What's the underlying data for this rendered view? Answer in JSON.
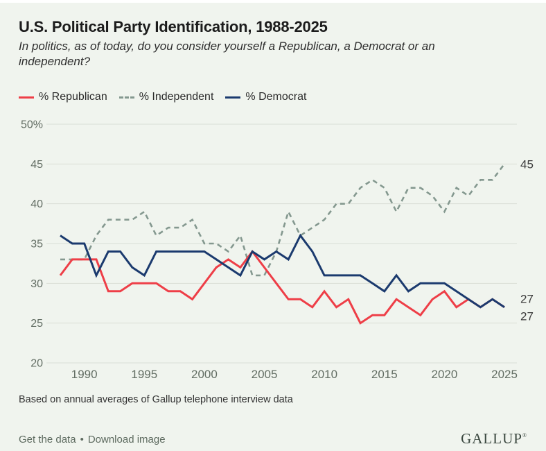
{
  "header": {
    "title": "U.S. Political Party Identification, 1988-2025",
    "subtitle": "In politics, as of today, do you consider yourself a Republican, a Democrat or an independent?"
  },
  "legend": {
    "items": [
      {
        "label": "% Republican"
      },
      {
        "label": "% Independent"
      },
      {
        "label": "% Democrat"
      }
    ]
  },
  "chart_data": {
    "type": "line",
    "x": [
      1988,
      1989,
      1990,
      1991,
      1992,
      1993,
      1994,
      1995,
      1996,
      1997,
      1998,
      1999,
      2000,
      2001,
      2002,
      2003,
      2004,
      2005,
      2006,
      2007,
      2008,
      2009,
      2010,
      2011,
      2012,
      2013,
      2014,
      2015,
      2016,
      2017,
      2018,
      2019,
      2020,
      2021,
      2022,
      2023,
      2024,
      2025
    ],
    "series": [
      {
        "name": "% Republican",
        "color": "#ee3e47",
        "style": "solid",
        "width": 3,
        "values": [
          31,
          33,
          33,
          33,
          29,
          29,
          30,
          30,
          30,
          29,
          29,
          28,
          30,
          32,
          33,
          32,
          34,
          32,
          30,
          28,
          28,
          27,
          29,
          27,
          28,
          25,
          26,
          26,
          28,
          27,
          26,
          28,
          29,
          27,
          28,
          27,
          28,
          27
        ]
      },
      {
        "name": "% Independent",
        "color": "#84988f",
        "style": "dashed",
        "width": 2.6,
        "values": [
          33,
          33,
          33,
          36,
          38,
          38,
          38,
          39,
          36,
          37,
          37,
          38,
          35,
          35,
          34,
          36,
          31,
          31,
          34,
          39,
          36,
          37,
          38,
          40,
          40,
          42,
          43,
          42,
          39,
          42,
          42,
          41,
          39,
          42,
          41,
          43,
          43,
          45
        ]
      },
      {
        "name": "% Democrat",
        "color": "#1b3a6e",
        "style": "solid",
        "width": 3,
        "values": [
          36,
          35,
          35,
          31,
          34,
          34,
          32,
          31,
          34,
          34,
          34,
          34,
          34,
          33,
          32,
          31,
          34,
          33,
          34,
          33,
          36,
          34,
          31,
          31,
          31,
          31,
          30,
          29,
          31,
          29,
          30,
          30,
          30,
          29,
          28,
          27,
          28,
          27
        ]
      }
    ],
    "ylim": [
      20,
      50
    ],
    "yticks": [
      50,
      45,
      40,
      35,
      30,
      25,
      20
    ],
    "ytick_labels": [
      "50%",
      "45",
      "40",
      "35",
      "30",
      "25",
      "20"
    ],
    "xticks": [
      1990,
      1995,
      2000,
      2005,
      2010,
      2015,
      2020,
      2025
    ],
    "xtick_labels": [
      "1990",
      "1995",
      "2000",
      "2005",
      "2010",
      "2015",
      "2020",
      "2025"
    ],
    "end_labels": [
      "45",
      "27",
      "27"
    ],
    "grid": true,
    "legend_position": "top"
  },
  "footnote": "Based on annual averages of Gallup telephone interview data",
  "footer": {
    "get_data_label": "Get the data",
    "separator": "•",
    "download_label": "Download image",
    "logo": "GALLUP",
    "logo_mark": "®"
  }
}
